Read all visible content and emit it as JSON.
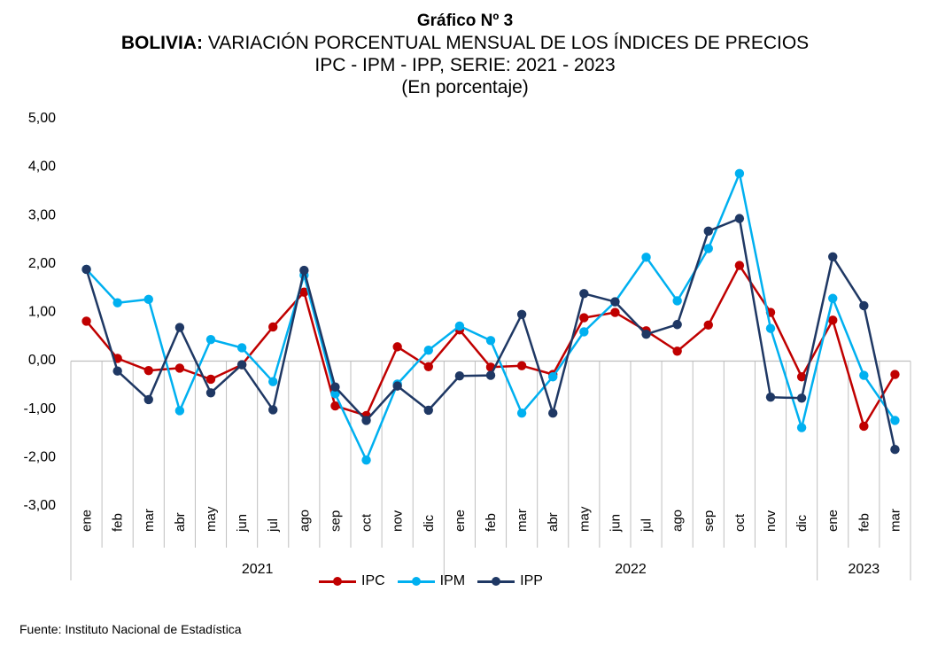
{
  "header": {
    "title": "Gráfico Nº 3",
    "subtitle_bold": "BOLIVIA:",
    "subtitle_rest": " VARIACIÓN PORCENTUAL MENSUAL DE LOS ÍNDICES DE PRECIOS",
    "subtitle2": "IPC - IPM - IPP, SERIE: 2021 - 2023",
    "units": "(En porcentaje)"
  },
  "source": "Fuente: Instituto Nacional de Estadística",
  "chart_data": {
    "type": "line",
    "x": [
      "ene",
      "feb",
      "mar",
      "abr",
      "may",
      "jun",
      "jul",
      "ago",
      "sep",
      "oct",
      "nov",
      "dic",
      "ene",
      "feb",
      "mar",
      "abr",
      "may",
      "jun",
      "jul",
      "ago",
      "sep",
      "oct",
      "nov",
      "dic",
      "ene",
      "feb",
      "mar"
    ],
    "year_groups": [
      {
        "label": "2021",
        "count": 12
      },
      {
        "label": "2022",
        "count": 12
      },
      {
        "label": "2023",
        "count": 3
      }
    ],
    "ylim": [
      -3,
      5
    ],
    "yticks": [
      "5,00",
      "4,00",
      "3,00",
      "2,00",
      "1,00",
      "0,00",
      "-1,00",
      "-2,00",
      "-3,00"
    ],
    "ytick_values": [
      5,
      4,
      3,
      2,
      1,
      0,
      -1,
      -2,
      -3
    ],
    "legend_position": "bottom",
    "series": [
      {
        "name": "IPC",
        "color": "#C00000",
        "values": [
          0.8,
          0.03,
          -0.22,
          -0.17,
          -0.4,
          -0.1,
          0.68,
          1.4,
          -0.95,
          -1.15,
          0.27,
          -0.14,
          0.62,
          -0.15,
          -0.12,
          -0.3,
          0.87,
          0.98,
          0.6,
          0.18,
          0.72,
          1.95,
          0.98,
          -0.35,
          0.82,
          -1.37,
          -0.3
        ]
      },
      {
        "name": "IPM",
        "color": "#00B0F0",
        "values": [
          1.87,
          1.18,
          1.25,
          -1.05,
          0.42,
          0.25,
          -0.45,
          1.75,
          -0.7,
          -2.07,
          -0.5,
          0.2,
          0.7,
          0.4,
          -1.1,
          -0.35,
          0.58,
          1.2,
          2.12,
          1.22,
          2.3,
          3.85,
          0.65,
          -1.4,
          1.27,
          -0.32,
          -1.25
        ]
      },
      {
        "name": "IPP",
        "color": "#1F3864",
        "values": [
          1.87,
          -0.23,
          -0.82,
          0.67,
          -0.68,
          -0.1,
          -1.03,
          1.85,
          -0.56,
          -1.25,
          -0.54,
          -1.04,
          -0.33,
          -0.32,
          0.94,
          -1.1,
          1.37,
          1.2,
          0.53,
          0.73,
          2.66,
          2.92,
          -0.77,
          -0.79,
          2.13,
          1.12,
          -1.85
        ]
      }
    ]
  }
}
